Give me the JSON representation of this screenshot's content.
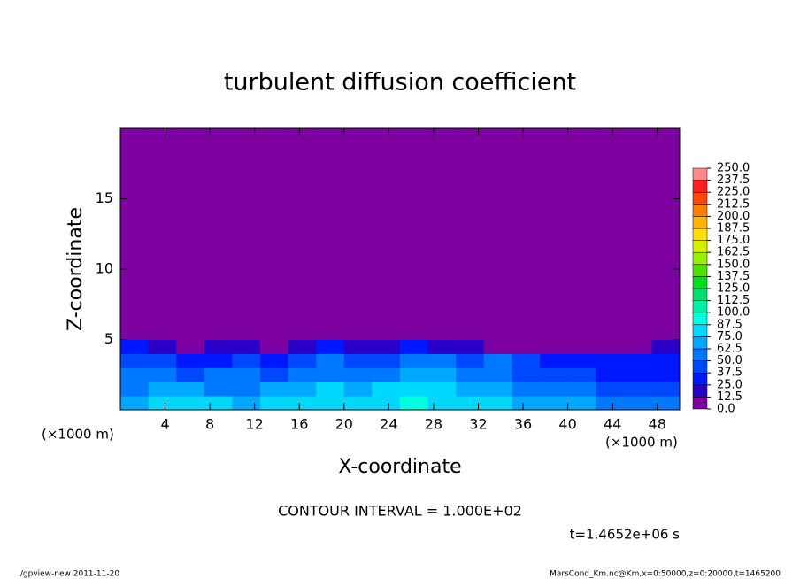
{
  "chart_data": {
    "type": "heatmap",
    "title": "turbulent diffusion coefficient",
    "x_label": "X-coordinate",
    "y_label": "Z-coordinate",
    "x_unit": "(×1000 m)",
    "y_unit": "(×1000 m)",
    "contour_note": "CONTOUR INTERVAL = 1.000E+02",
    "time_note": "t=1.4652e+06 s",
    "footer_left": "./gpview-new  2011-11-20",
    "footer_right": "MarsCond_Km.nc@Km,x=0:50000,z=0:20000,t=1465200",
    "xlim": [
      0,
      50
    ],
    "ylim": [
      0,
      20
    ],
    "xticks": [
      4,
      8,
      12,
      16,
      20,
      24,
      28,
      32,
      36,
      40,
      44,
      48
    ],
    "yticks": [
      5,
      10,
      15
    ],
    "xbins": [
      0,
      2.5,
      5,
      7.5,
      10,
      12.5,
      15,
      17.5,
      20,
      22.5,
      25,
      27.5,
      30,
      32.5,
      35,
      37.5,
      40,
      42.5,
      45,
      47.5,
      50
    ],
    "ybins": [
      0,
      1,
      2,
      3,
      4,
      5,
      20
    ],
    "z": [
      [
        70,
        75,
        80,
        75,
        70,
        80,
        75,
        85,
        80,
        85,
        90,
        85,
        80,
        75,
        70,
        70,
        65,
        60,
        55,
        50
      ],
      [
        60,
        65,
        70,
        60,
        55,
        70,
        65,
        75,
        70,
        75,
        80,
        75,
        70,
        65,
        60,
        55,
        50,
        45,
        45,
        40
      ],
      [
        50,
        55,
        45,
        50,
        50,
        45,
        55,
        60,
        55,
        60,
        65,
        70,
        55,
        60,
        45,
        40,
        40,
        35,
        35,
        35
      ],
      [
        40,
        45,
        25,
        35,
        40,
        30,
        45,
        50,
        45,
        40,
        55,
        60,
        45,
        50,
        40,
        35,
        30,
        30,
        30,
        30
      ],
      [
        25,
        20,
        10,
        20,
        20,
        5,
        15,
        30,
        20,
        15,
        25,
        20,
        15,
        10,
        10,
        10,
        5,
        5,
        10,
        15
      ],
      [
        0,
        5,
        5,
        0,
        0,
        0,
        0,
        5,
        0,
        0,
        0,
        0,
        0,
        0,
        0,
        0,
        0,
        0,
        0,
        0
      ]
    ],
    "levels": [
      {
        "value": 0,
        "label": "0.0"
      },
      12.5,
      {
        "value": 25,
        "label": "25.0"
      },
      37.5,
      {
        "value": 50,
        "label": "50.0"
      },
      62.5,
      {
        "value": 75,
        "label": "75.0"
      },
      87.5,
      {
        "value": 100,
        "label": "100.0"
      },
      112.5,
      {
        "value": 125,
        "label": "125.0"
      },
      137.5,
      {
        "value": 150,
        "label": "150.0"
      },
      162.5,
      {
        "value": 175,
        "label": "175.0"
      },
      187.5,
      {
        "value": 200,
        "label": "200.0"
      },
      212.5,
      {
        "value": 225,
        "label": "225.0"
      },
      237.5,
      {
        "value": 250,
        "label": "250.0"
      }
    ],
    "colors": [
      "#7d00a0",
      "#2a00c8",
      "#0018ff",
      "#0048ff",
      "#0078ff",
      "#00a8ff",
      "#00d8ff",
      "#00ffe0",
      "#00f0a8",
      "#00e070",
      "#00e020",
      "#50e000",
      "#98f000",
      "#d8f000",
      "#ffe000",
      "#ffb400",
      "#ff8000",
      "#ff4800",
      "#ff2020",
      "#ff8888"
    ]
  }
}
